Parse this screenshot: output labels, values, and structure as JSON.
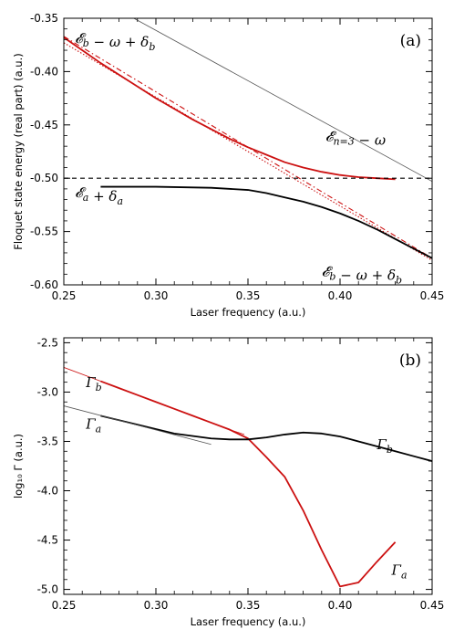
{
  "colors": {
    "red": "#cc1111",
    "black": "#000000",
    "gray": "#555555"
  },
  "chart_data": [
    {
      "type": "line",
      "panel": "(a)",
      "xlabel": "Laser frequency  (a.u.)",
      "ylabel": "Floquet state energy (real part)  (a.u.)",
      "xlim": [
        0.25,
        0.45
      ],
      "ylim": [
        -0.6,
        -0.35
      ],
      "xticks": [
        "0.25",
        "0.30",
        "0.35",
        "0.40",
        "0.45"
      ],
      "yticks": [
        "-0.35",
        "-0.40",
        "-0.45",
        "-0.50",
        "-0.55",
        "-0.60"
      ],
      "annotations": [
        {
          "text": "𝓔b − ω + δb",
          "x": 0.256,
          "y": -0.373
        },
        {
          "text": "𝓔n=3 − ω",
          "x": 0.392,
          "y": -0.465
        },
        {
          "text": "𝓔a + δa",
          "x": 0.256,
          "y": -0.518
        },
        {
          "text": "𝓔b − ω + δb",
          "x": 0.39,
          "y": -0.592
        }
      ],
      "series": [
        {
          "style": "red-solid",
          "x": [
            0.25,
            0.26,
            0.27,
            0.28,
            0.29,
            0.3,
            0.31,
            0.32,
            0.33,
            0.34,
            0.35,
            0.36,
            0.37,
            0.38,
            0.39,
            0.4,
            0.41,
            0.42,
            0.43
          ],
          "y": [
            -0.368,
            -0.38,
            -0.392,
            -0.403,
            -0.414,
            -0.425,
            -0.435,
            -0.445,
            -0.454,
            -0.463,
            -0.471,
            -0.478,
            -0.485,
            -0.49,
            -0.494,
            -0.497,
            -0.499,
            -0.5,
            -0.501
          ]
        },
        {
          "style": "red-dashdot",
          "x": [
            0.25,
            0.45
          ],
          "y": [
            -0.367,
            -0.575
          ]
        },
        {
          "style": "red-dotted",
          "x": [
            0.25,
            0.45
          ],
          "y": [
            -0.373,
            -0.577
          ]
        },
        {
          "style": "black-solid",
          "x": [
            0.27,
            0.3,
            0.33,
            0.35,
            0.36,
            0.37,
            0.38,
            0.39,
            0.4,
            0.41,
            0.42,
            0.43,
            0.44,
            0.45
          ],
          "y": [
            -0.508,
            -0.508,
            -0.509,
            -0.511,
            -0.514,
            -0.518,
            -0.522,
            -0.527,
            -0.533,
            -0.54,
            -0.548,
            -0.557,
            -0.566,
            -0.575
          ]
        },
        {
          "style": "black-dashed",
          "x": [
            0.25,
            0.45
          ],
          "y": [
            -0.5,
            -0.5
          ]
        },
        {
          "style": "gray-thin",
          "x": [
            0.288,
            0.45
          ],
          "y": [
            -0.35,
            -0.503
          ]
        }
      ]
    },
    {
      "type": "line",
      "panel": "(b)",
      "xlabel": "Laser frequency  (a.u.)",
      "ylabel": "log₁₀ Γ  (a.u.)",
      "xlim": [
        0.25,
        0.45
      ],
      "ylim": [
        -5.05,
        -2.45
      ],
      "xticks": [
        "0.25",
        "0.30",
        "0.35",
        "0.40",
        "0.45"
      ],
      "yticks": [
        "-2.5",
        "-3.0",
        "-3.5",
        "-4.0",
        "-4.5",
        "-5.0"
      ],
      "annotations": [
        {
          "text": "Γb",
          "x": 0.262,
          "y": -2.95
        },
        {
          "text": "Γa",
          "x": 0.262,
          "y": -3.37
        },
        {
          "text": "Γb",
          "x": 0.42,
          "y": -3.58
        },
        {
          "text": "Γa",
          "x": 0.428,
          "y": -4.85
        }
      ],
      "series": [
        {
          "style": "red-solid",
          "x": [
            0.27,
            0.28,
            0.29,
            0.3,
            0.31,
            0.32,
            0.33,
            0.34,
            0.35,
            0.36,
            0.37,
            0.38,
            0.39,
            0.4,
            0.41,
            0.42,
            0.43
          ],
          "y": [
            -2.89,
            -2.96,
            -3.03,
            -3.1,
            -3.17,
            -3.24,
            -3.31,
            -3.38,
            -3.47,
            -3.66,
            -3.86,
            -4.2,
            -4.6,
            -4.97,
            -4.93,
            -4.72,
            -4.52
          ]
        },
        {
          "style": "red-thin",
          "x": [
            0.25,
            0.27
          ],
          "y": [
            -2.75,
            -2.89
          ]
        },
        {
          "style": "red-thin",
          "x": [
            0.34,
            0.348
          ],
          "y": [
            -3.38,
            -3.43
          ]
        },
        {
          "style": "black-solid",
          "x": [
            0.27,
            0.29,
            0.31,
            0.33,
            0.34,
            0.35,
            0.36,
            0.37,
            0.38,
            0.39,
            0.4,
            0.41,
            0.42,
            0.43,
            0.44,
            0.45
          ],
          "y": [
            -3.24,
            -3.33,
            -3.42,
            -3.47,
            -3.48,
            -3.48,
            -3.46,
            -3.43,
            -3.41,
            -3.42,
            -3.45,
            -3.5,
            -3.55,
            -3.6,
            -3.65,
            -3.7
          ]
        },
        {
          "style": "gray-thin",
          "x": [
            0.25,
            0.33
          ],
          "y": [
            -3.14,
            -3.53
          ]
        }
      ]
    }
  ]
}
